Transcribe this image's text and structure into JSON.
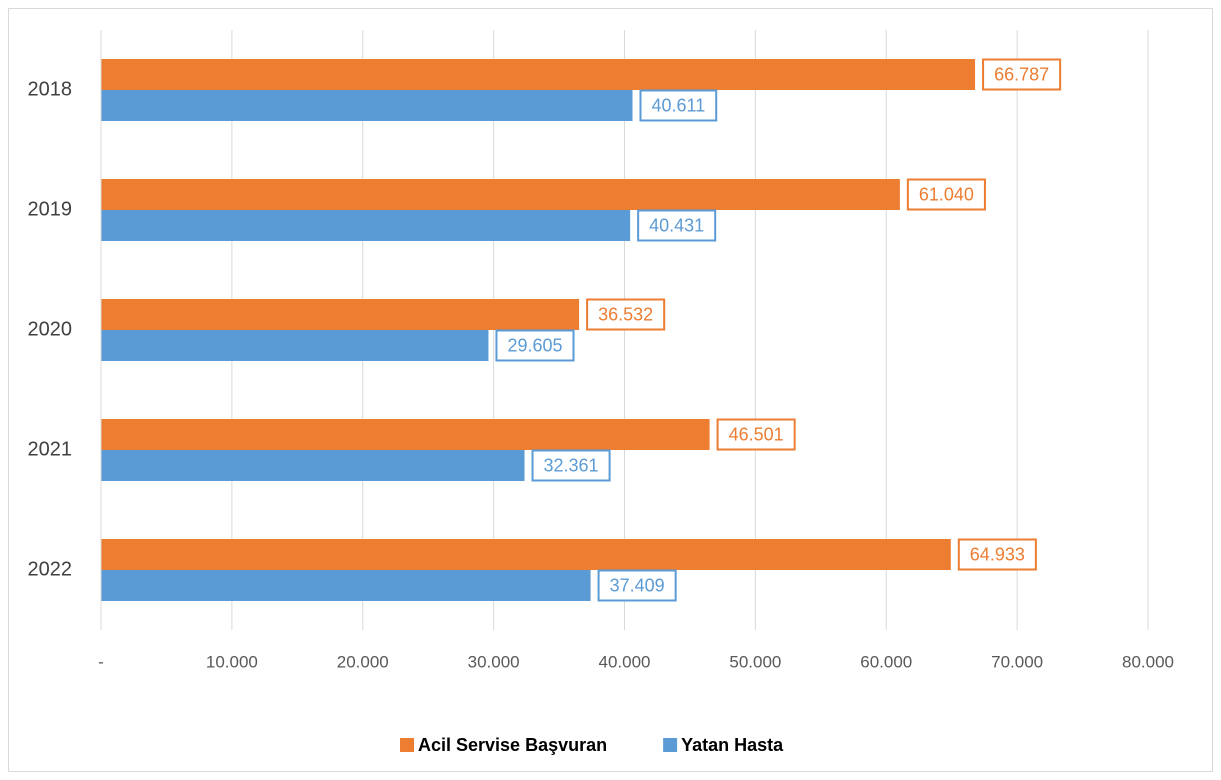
{
  "chart_data": {
    "type": "bar",
    "orientation": "horizontal",
    "categories": [
      "2018",
      "2019",
      "2020",
      "2021",
      "2022"
    ],
    "series": [
      {
        "name": "Acil Servise Başvuran",
        "color": "#ed7d31",
        "values": [
          66787,
          61040,
          36532,
          46501,
          64933
        ],
        "value_labels": [
          "66.787",
          "61.040",
          "36.532",
          "46.501",
          "64.933"
        ]
      },
      {
        "name": "Yatan Hasta",
        "color": "#5b9bd5",
        "values": [
          40611,
          40431,
          29605,
          32361,
          37409
        ],
        "value_labels": [
          "40.611",
          "40.431",
          "29.605",
          "32.361",
          "37.409"
        ]
      }
    ],
    "xlim": [
      0,
      80000
    ],
    "xticks": [
      {
        "value": 0,
        "label": "-"
      },
      {
        "value": 10000,
        "label": "10.000"
      },
      {
        "value": 20000,
        "label": "20.000"
      },
      {
        "value": 30000,
        "label": "30.000"
      },
      {
        "value": 40000,
        "label": "40.000"
      },
      {
        "value": 50000,
        "label": "50.000"
      },
      {
        "value": 60000,
        "label": "60.000"
      },
      {
        "value": 70000,
        "label": "70.000"
      },
      {
        "value": 80000,
        "label": "80.000"
      }
    ],
    "grid": true,
    "legend": "bottom"
  }
}
